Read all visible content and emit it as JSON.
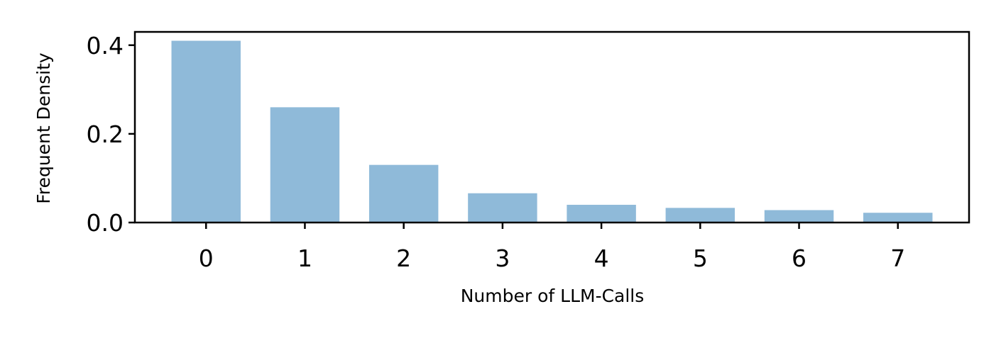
{
  "chart_data": {
    "type": "bar",
    "title": "",
    "xlabel": "Number of LLM-Calls",
    "ylabel": "Frequent Density",
    "categories": [
      "0",
      "1",
      "2",
      "3",
      "4",
      "5",
      "6",
      "7"
    ],
    "values": [
      0.41,
      0.26,
      0.13,
      0.066,
      0.04,
      0.033,
      0.028,
      0.022
    ],
    "y_ticks": [
      0.0,
      0.2,
      0.4
    ],
    "y_tick_labels": [
      "0.0",
      "0.2",
      "0.4"
    ],
    "ylim": [
      0,
      0.43
    ],
    "xlim": [
      -0.72,
      7.72
    ],
    "grid": false,
    "legend": "none",
    "bar_color": "#8fbad9",
    "axis_color": "#000000"
  }
}
